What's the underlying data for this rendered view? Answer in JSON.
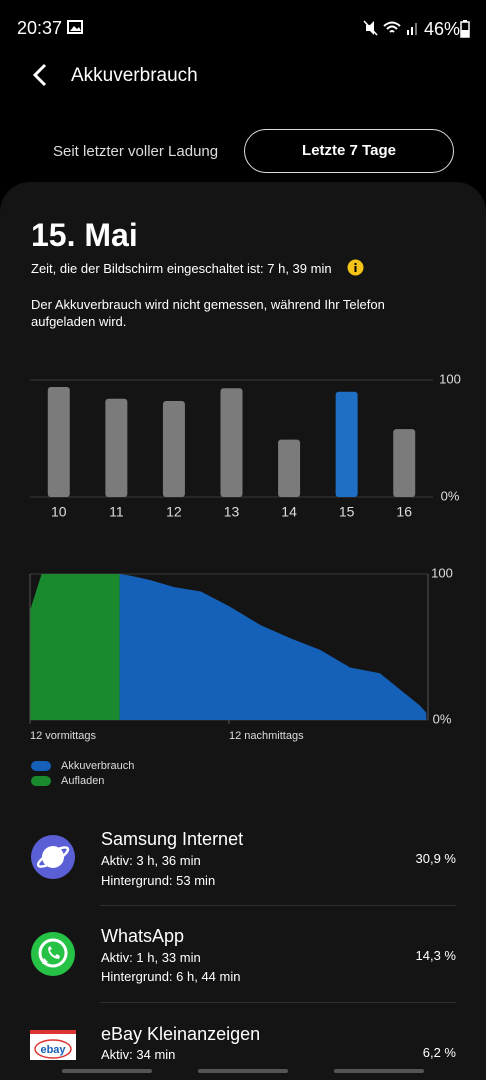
{
  "status_bar": {
    "time": "20:37",
    "battery": "46%"
  },
  "header": {
    "title": "Akkuverbrauch"
  },
  "tabs": [
    "Seit letzter voller Ladung",
    "Letzte 7 Tage"
  ],
  "summary": {
    "date": "15. Mai",
    "screen_time": "Zeit, die der Bildschirm eingeschaltet ist: 7 h, 39 min",
    "note": "Der Akkuverbrauch wird nicht gemessen, während Ihr Telefon aufgeladen wird."
  },
  "chart_data": [
    {
      "type": "bar",
      "categories": [
        "10",
        "11",
        "12",
        "13",
        "14",
        "15",
        "16"
      ],
      "values": [
        94,
        84,
        82,
        93,
        49,
        90,
        58
      ],
      "colors": [
        "#7b7b7b",
        "#7b7b7b",
        "#7b7b7b",
        "#7b7b7b",
        "#7b7b7b",
        "#1e6fc5",
        "#7b7b7b"
      ],
      "ylim": [
        0,
        100
      ],
      "yticks": [
        {
          "value": 0,
          "label": "0%"
        },
        100
      ],
      "grid": true
    },
    {
      "type": "area",
      "x": [
        0,
        0.7,
        5.4,
        6,
        7.2,
        8.7,
        10.3,
        12,
        13.9,
        15.7,
        17.5,
        19.3,
        21.1,
        22.3,
        23.5,
        23.9
      ],
      "xlim": [
        0,
        24
      ],
      "xticks": [
        {
          "value": 0,
          "label": "12 vormittags"
        },
        {
          "value": 12,
          "label": "12 nachmittags"
        }
      ],
      "ylim": [
        0,
        100
      ],
      "yticks": [
        {
          "value": 0,
          "label": "0%"
        },
        100
      ],
      "series": [
        {
          "name": "Akkuverbrauch",
          "color": "#1560b8",
          "values": [
            null,
            null,
            100,
            99,
            96,
            91,
            88,
            78,
            65,
            56,
            48,
            36,
            32,
            21,
            10,
            5
          ]
        },
        {
          "name": "Aufladen",
          "color": "#1a8a2e",
          "values": [
            75,
            100,
            100,
            null,
            null,
            null,
            null,
            null,
            null,
            null,
            null,
            null,
            null,
            null,
            null,
            null
          ]
        }
      ]
    }
  ],
  "apps": [
    {
      "name": "Samsung Internet",
      "active": "Aktiv: 3 h, 36 min",
      "background": "Hintergrund: 53 min",
      "percent": "30,9 %"
    },
    {
      "name": "WhatsApp",
      "active": "Aktiv: 1 h, 33 min",
      "background": "Hintergrund: 6 h, 44 min",
      "percent": "14,3 %"
    },
    {
      "name": "eBay Kleinanzeigen",
      "active": "Aktiv: 34 min",
      "percent": "6,2 %"
    }
  ]
}
